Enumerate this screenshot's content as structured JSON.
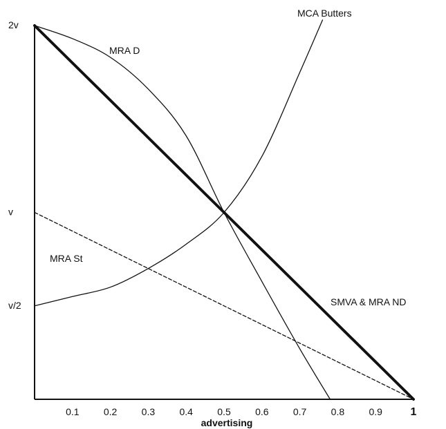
{
  "chart_data": {
    "type": "line",
    "xlabel": "advertising",
    "xlim": [
      0,
      1
    ],
    "ylim": [
      0,
      2
    ],
    "grid": false,
    "legend": "none",
    "x_ticks": [
      {
        "value": 0.1,
        "label": "0.1"
      },
      {
        "value": 0.2,
        "label": "0.2"
      },
      {
        "value": 0.3,
        "label": "0.3"
      },
      {
        "value": 0.4,
        "label": "0.4"
      },
      {
        "value": 0.5,
        "label": "0.5"
      },
      {
        "value": 0.6,
        "label": "0.6"
      },
      {
        "value": 0.7,
        "label": "0.7"
      },
      {
        "value": 0.8,
        "label": "0.8"
      },
      {
        "value": 0.9,
        "label": "0.9"
      },
      {
        "value": 1.0,
        "label": "1"
      }
    ],
    "y_ticks": [
      {
        "value": 2,
        "label": "2v"
      },
      {
        "value": 1,
        "label": "v"
      },
      {
        "value": 0.5,
        "label": "v/2"
      }
    ],
    "series": [
      {
        "name": "SMVA & MRA ND",
        "style": "thick",
        "color": "#111111",
        "x": [
          0,
          0.25,
          0.5,
          0.75,
          1.0
        ],
        "y": [
          2,
          1.5,
          1.0,
          0.5,
          0
        ]
      },
      {
        "name": "MRA D",
        "style": "thin",
        "color": "#111111",
        "x": [
          0,
          0.1,
          0.2,
          0.3,
          0.4,
          0.5,
          0.6,
          0.7,
          0.78
        ],
        "y": [
          2,
          1.93,
          1.83,
          1.66,
          1.41,
          1.0,
          0.63,
          0.27,
          0
        ]
      },
      {
        "name": "MCA Butters",
        "style": "thin",
        "color": "#111111",
        "x": [
          0,
          0.1,
          0.2,
          0.3,
          0.4,
          0.5,
          0.6,
          0.7,
          0.76
        ],
        "y": [
          0.5,
          0.55,
          0.6,
          0.7,
          0.83,
          1.0,
          1.3,
          1.75,
          2.03
        ]
      },
      {
        "name": "MRA St",
        "style": "dashed",
        "color": "#111111",
        "x": [
          0,
          1.0
        ],
        "y": [
          1.0,
          0
        ]
      }
    ]
  }
}
